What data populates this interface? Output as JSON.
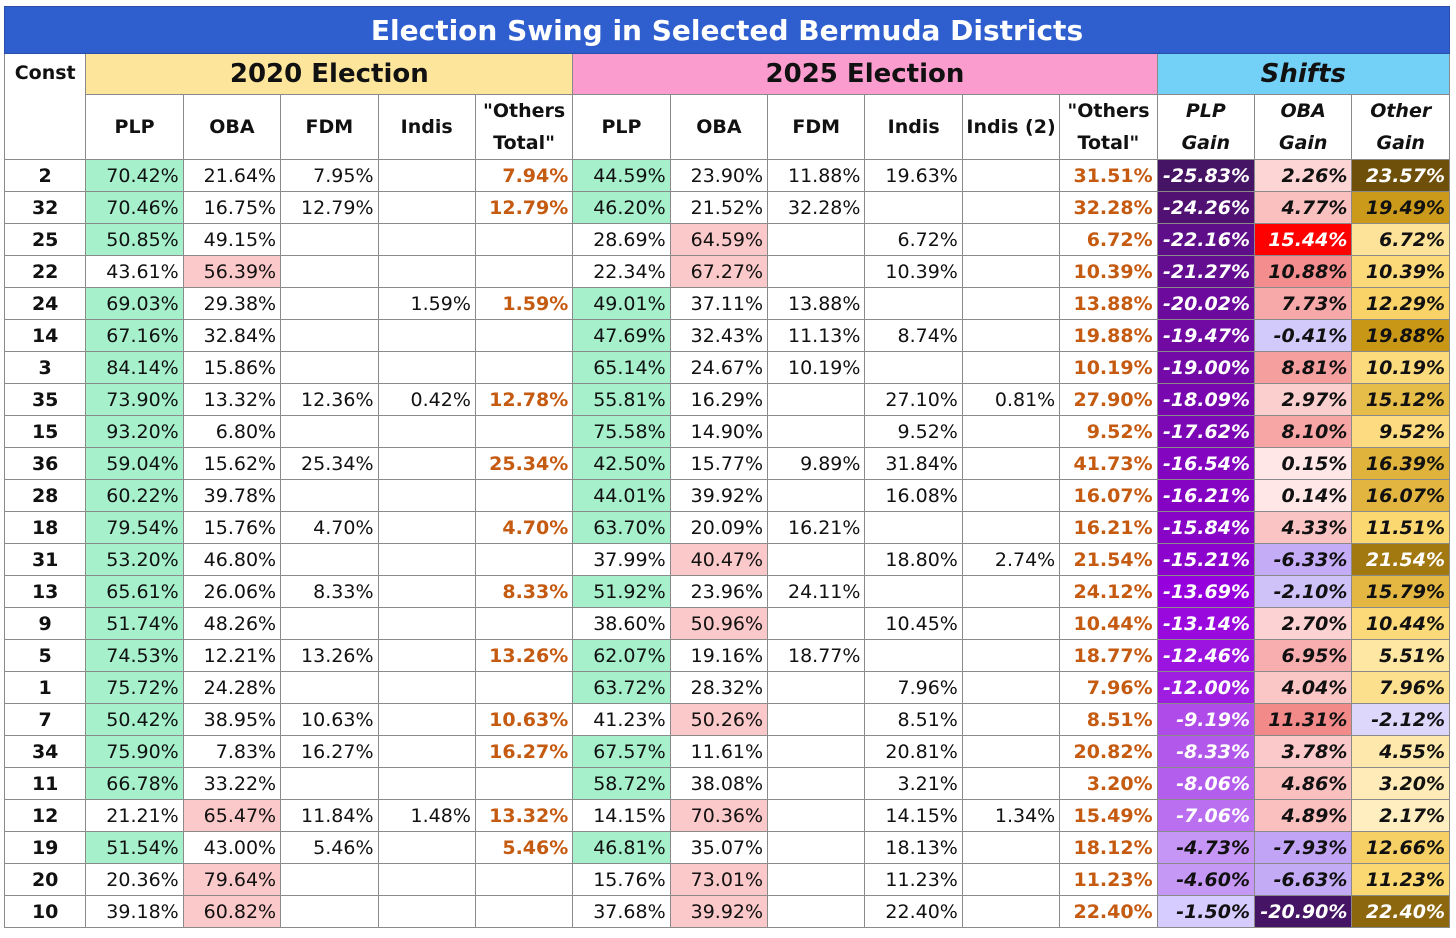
{
  "title": "Election Swing in Selected Bermuda Districts",
  "header": {
    "const": "Const",
    "e2020": "2020 Election",
    "e2025": "2025 Election",
    "shifts": "Shifts",
    "cols2020": [
      "PLP",
      "OBA",
      "FDM",
      "Indis",
      "\"Others\nTotal\""
    ],
    "cols2025": [
      "PLP",
      "OBA",
      "FDM",
      "Indis",
      "Indis (2)",
      "\"Others\nTotal\""
    ],
    "colsShift": [
      "PLP\nGain",
      "OBA\nGain",
      "Other\nGain"
    ]
  },
  "colors": {
    "title_bg": "#2f5fcf",
    "e2020_bg": "#fde59b",
    "e2025_bg": "#fb9cce",
    "shifts_bg": "#73d0f7",
    "plp_highlight": "#a6f0cc",
    "oba_highlight": "#fbc9c9",
    "others_text": "#c55a11"
  },
  "rows": [
    {
      "c": "2",
      "a": [
        "70.42%",
        "21.64%",
        "7.95%",
        "",
        "7.94%"
      ],
      "b": [
        "44.59%",
        "23.90%",
        "11.88%",
        "19.63%",
        "",
        "31.51%"
      ],
      "s": [
        "-25.83%",
        "2.26%",
        "23.57%"
      ],
      "hl": [
        "plp20",
        "plp25"
      ]
    },
    {
      "c": "32",
      "a": [
        "70.46%",
        "16.75%",
        "12.79%",
        "",
        "12.79%"
      ],
      "b": [
        "46.20%",
        "21.52%",
        "32.28%",
        "",
        "",
        "32.28%"
      ],
      "s": [
        "-24.26%",
        "4.77%",
        "19.49%"
      ],
      "hl": [
        "plp20",
        "plp25"
      ]
    },
    {
      "c": "25",
      "a": [
        "50.85%",
        "49.15%",
        "",
        "",
        ""
      ],
      "b": [
        "28.69%",
        "64.59%",
        "",
        "6.72%",
        "",
        "6.72%"
      ],
      "s": [
        "-22.16%",
        "15.44%",
        "6.72%"
      ],
      "hl": [
        "plp20",
        "oba25"
      ]
    },
    {
      "c": "22",
      "a": [
        "43.61%",
        "56.39%",
        "",
        "",
        ""
      ],
      "b": [
        "22.34%",
        "67.27%",
        "",
        "10.39%",
        "",
        "10.39%"
      ],
      "s": [
        "-21.27%",
        "10.88%",
        "10.39%"
      ],
      "hl": [
        "oba20",
        "oba25"
      ]
    },
    {
      "c": "24",
      "a": [
        "69.03%",
        "29.38%",
        "",
        "1.59%",
        "1.59%"
      ],
      "b": [
        "49.01%",
        "37.11%",
        "13.88%",
        "",
        "",
        "13.88%"
      ],
      "s": [
        "-20.02%",
        "7.73%",
        "12.29%"
      ],
      "hl": [
        "plp20",
        "plp25"
      ]
    },
    {
      "c": "14",
      "a": [
        "67.16%",
        "32.84%",
        "",
        "",
        ""
      ],
      "b": [
        "47.69%",
        "32.43%",
        "11.13%",
        "8.74%",
        "",
        "19.88%"
      ],
      "s": [
        "-19.47%",
        "-0.41%",
        "19.88%"
      ],
      "hl": [
        "plp20",
        "plp25"
      ]
    },
    {
      "c": "3",
      "a": [
        "84.14%",
        "15.86%",
        "",
        "",
        ""
      ],
      "b": [
        "65.14%",
        "24.67%",
        "10.19%",
        "",
        "",
        "10.19%"
      ],
      "s": [
        "-19.00%",
        "8.81%",
        "10.19%"
      ],
      "hl": [
        "plp20",
        "plp25"
      ]
    },
    {
      "c": "35",
      "a": [
        "73.90%",
        "13.32%",
        "12.36%",
        "0.42%",
        "12.78%"
      ],
      "b": [
        "55.81%",
        "16.29%",
        "",
        "27.10%",
        "0.81%",
        "27.90%"
      ],
      "s": [
        "-18.09%",
        "2.97%",
        "15.12%"
      ],
      "hl": [
        "plp20",
        "plp25"
      ]
    },
    {
      "c": "15",
      "a": [
        "93.20%",
        "6.80%",
        "",
        "",
        ""
      ],
      "b": [
        "75.58%",
        "14.90%",
        "",
        "9.52%",
        "",
        "9.52%"
      ],
      "s": [
        "-17.62%",
        "8.10%",
        "9.52%"
      ],
      "hl": [
        "plp20",
        "plp25"
      ]
    },
    {
      "c": "36",
      "a": [
        "59.04%",
        "15.62%",
        "25.34%",
        "",
        "25.34%"
      ],
      "b": [
        "42.50%",
        "15.77%",
        "9.89%",
        "31.84%",
        "",
        "41.73%"
      ],
      "s": [
        "-16.54%",
        "0.15%",
        "16.39%"
      ],
      "hl": [
        "plp20",
        "plp25"
      ]
    },
    {
      "c": "28",
      "a": [
        "60.22%",
        "39.78%",
        "",
        "",
        ""
      ],
      "b": [
        "44.01%",
        "39.92%",
        "",
        "16.08%",
        "",
        "16.07%"
      ],
      "s": [
        "-16.21%",
        "0.14%",
        "16.07%"
      ],
      "hl": [
        "plp20",
        "plp25"
      ]
    },
    {
      "c": "18",
      "a": [
        "79.54%",
        "15.76%",
        "4.70%",
        "",
        "4.70%"
      ],
      "b": [
        "63.70%",
        "20.09%",
        "16.21%",
        "",
        "",
        "16.21%"
      ],
      "s": [
        "-15.84%",
        "4.33%",
        "11.51%"
      ],
      "hl": [
        "plp20",
        "plp25"
      ]
    },
    {
      "c": "31",
      "a": [
        "53.20%",
        "46.80%",
        "",
        "",
        ""
      ],
      "b": [
        "37.99%",
        "40.47%",
        "",
        "18.80%",
        "2.74%",
        "21.54%"
      ],
      "s": [
        "-15.21%",
        "-6.33%",
        "21.54%"
      ],
      "hl": [
        "plp20",
        "oba25"
      ]
    },
    {
      "c": "13",
      "a": [
        "65.61%",
        "26.06%",
        "8.33%",
        "",
        "8.33%"
      ],
      "b": [
        "51.92%",
        "23.96%",
        "24.11%",
        "",
        "",
        "24.12%"
      ],
      "s": [
        "-13.69%",
        "-2.10%",
        "15.79%"
      ],
      "hl": [
        "plp20",
        "plp25"
      ]
    },
    {
      "c": "9",
      "a": [
        "51.74%",
        "48.26%",
        "",
        "",
        ""
      ],
      "b": [
        "38.60%",
        "50.96%",
        "",
        "10.45%",
        "",
        "10.44%"
      ],
      "s": [
        "-13.14%",
        "2.70%",
        "10.44%"
      ],
      "hl": [
        "plp20",
        "oba25"
      ]
    },
    {
      "c": "5",
      "a": [
        "74.53%",
        "12.21%",
        "13.26%",
        "",
        "13.26%"
      ],
      "b": [
        "62.07%",
        "19.16%",
        "18.77%",
        "",
        "",
        "18.77%"
      ],
      "s": [
        "-12.46%",
        "6.95%",
        "5.51%"
      ],
      "hl": [
        "plp20",
        "plp25"
      ]
    },
    {
      "c": "1",
      "a": [
        "75.72%",
        "24.28%",
        "",
        "",
        ""
      ],
      "b": [
        "63.72%",
        "28.32%",
        "",
        "7.96%",
        "",
        "7.96%"
      ],
      "s": [
        "-12.00%",
        "4.04%",
        "7.96%"
      ],
      "hl": [
        "plp20",
        "plp25"
      ]
    },
    {
      "c": "7",
      "a": [
        "50.42%",
        "38.95%",
        "10.63%",
        "",
        "10.63%"
      ],
      "b": [
        "41.23%",
        "50.26%",
        "",
        "8.51%",
        "",
        "8.51%"
      ],
      "s": [
        "-9.19%",
        "11.31%",
        "-2.12%"
      ],
      "hl": [
        "plp20",
        "oba25"
      ]
    },
    {
      "c": "34",
      "a": [
        "75.90%",
        "7.83%",
        "16.27%",
        "",
        "16.27%"
      ],
      "b": [
        "67.57%",
        "11.61%",
        "",
        "20.81%",
        "",
        "20.82%"
      ],
      "s": [
        "-8.33%",
        "3.78%",
        "4.55%"
      ],
      "hl": [
        "plp20",
        "plp25"
      ]
    },
    {
      "c": "11",
      "a": [
        "66.78%",
        "33.22%",
        "",
        "",
        ""
      ],
      "b": [
        "58.72%",
        "38.08%",
        "",
        "3.21%",
        "",
        "3.20%"
      ],
      "s": [
        "-8.06%",
        "4.86%",
        "3.20%"
      ],
      "hl": [
        "plp20",
        "plp25"
      ]
    },
    {
      "c": "12",
      "a": [
        "21.21%",
        "65.47%",
        "11.84%",
        "1.48%",
        "13.32%"
      ],
      "b": [
        "14.15%",
        "70.36%",
        "",
        "14.15%",
        "1.34%",
        "15.49%"
      ],
      "s": [
        "-7.06%",
        "4.89%",
        "2.17%"
      ],
      "hl": [
        "oba20",
        "oba25"
      ]
    },
    {
      "c": "19",
      "a": [
        "51.54%",
        "43.00%",
        "5.46%",
        "",
        "5.46%"
      ],
      "b": [
        "46.81%",
        "35.07%",
        "",
        "18.13%",
        "",
        "18.12%"
      ],
      "s": [
        "-4.73%",
        "-7.93%",
        "12.66%"
      ],
      "hl": [
        "plp20",
        "plp25"
      ]
    },
    {
      "c": "20",
      "a": [
        "20.36%",
        "79.64%",
        "",
        "",
        ""
      ],
      "b": [
        "15.76%",
        "73.01%",
        "",
        "11.23%",
        "",
        "11.23%"
      ],
      "s": [
        "-4.60%",
        "-6.63%",
        "11.23%"
      ],
      "hl": [
        "oba20",
        "oba25"
      ]
    },
    {
      "c": "10",
      "a": [
        "39.18%",
        "60.82%",
        "",
        "",
        ""
      ],
      "b": [
        "37.68%",
        "39.92%",
        "",
        "22.40%",
        "",
        "22.40%"
      ],
      "s": [
        "-1.50%",
        "-20.90%",
        "22.40%"
      ],
      "hl": [
        "oba20",
        "oba25"
      ]
    }
  ]
}
